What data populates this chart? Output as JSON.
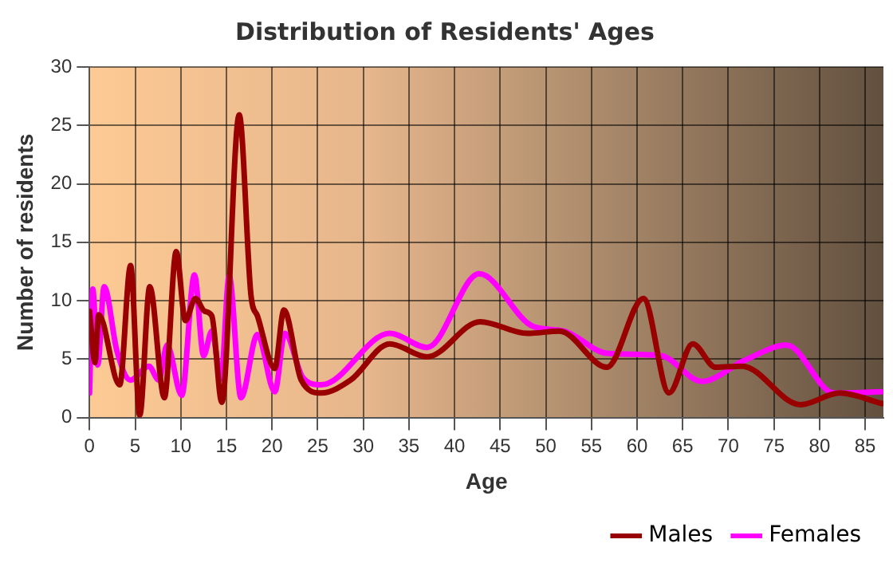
{
  "chart_data": {
    "type": "line",
    "title": "Distribution of Residents' Ages",
    "xlabel": "Age",
    "ylabel": "Number of residents",
    "series": [
      {
        "name": "Males",
        "color": "#990000",
        "x": [
          0,
          0.6,
          1,
          3.3,
          4.5,
          5.5,
          6.6,
          8.2,
          9.5,
          10.5,
          11.6,
          12.6,
          13.4,
          14.5,
          16.4,
          17.7,
          18.4,
          20.3,
          21.3,
          23.2,
          25.4,
          28.6,
          32.9,
          37,
          42.8,
          48,
          51.5,
          56.7,
          60.7,
          63.5,
          66.1,
          68.6,
          71.5,
          77.9,
          82.2,
          86.8
        ],
        "values": [
          9.1,
          4.7,
          8.8,
          2.8,
          13,
          0.2,
          11.2,
          1.7,
          14.2,
          8.3,
          10.2,
          9.1,
          8.7,
          1.3,
          25.9,
          10.4,
          8.7,
          4.2,
          9.2,
          3.2,
          2.1,
          3.2,
          6.3,
          5.2,
          8.2,
          7.2,
          7.4,
          4.3,
          10.2,
          2.1,
          6.3,
          4.3,
          4.4,
          1.1,
          2.1,
          1.2
        ]
      },
      {
        "name": "Females",
        "color": "#ff00ff",
        "x": [
          0,
          0.35,
          0.9,
          1.6,
          3,
          4.5,
          6.5,
          7.6,
          8.5,
          10.1,
          11.5,
          12.5,
          13.4,
          14.4,
          15.3,
          16.6,
          18.4,
          20.3,
          21.4,
          23.4,
          25.4,
          32.9,
          37,
          42.7,
          48.6,
          52,
          56.7,
          62.6,
          67.1,
          71.8,
          76.4,
          81.6,
          86.8
        ],
        "values": [
          2.1,
          11,
          4.5,
          11.2,
          5.7,
          3.2,
          4.4,
          3.2,
          6.2,
          1.9,
          12.2,
          5.3,
          7.4,
          3.3,
          12.1,
          1.7,
          7.1,
          2.2,
          7.2,
          3.4,
          2.8,
          7.2,
          6,
          12.3,
          7.8,
          7.4,
          5.5,
          5.3,
          3.1,
          4.9,
          6.2,
          2.1,
          2.2
        ]
      }
    ],
    "xlim": [
      0,
      87
    ],
    "xticks": [
      0,
      5,
      10,
      15,
      20,
      25,
      30,
      35,
      40,
      45,
      50,
      55,
      60,
      65,
      70,
      75,
      80,
      85
    ],
    "ylim": [
      0,
      30
    ],
    "yticks": [
      0,
      5,
      10,
      15,
      20,
      25,
      30
    ],
    "grid": true,
    "legend": "bottom right",
    "marker": "none",
    "line_style": "solid"
  }
}
